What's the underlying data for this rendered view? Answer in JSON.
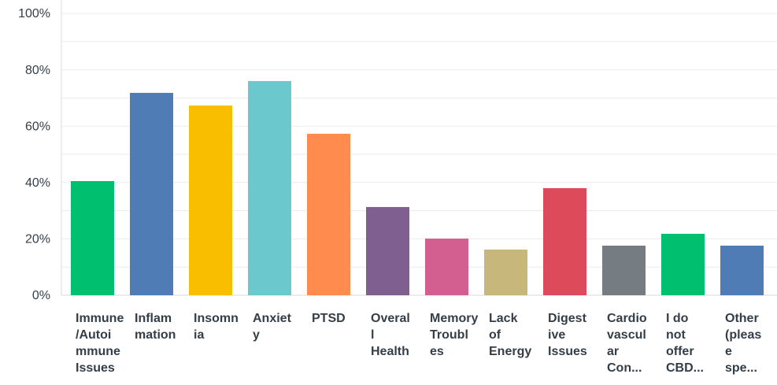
{
  "chart_data": {
    "type": "bar",
    "categories": [
      "Immune\n/Autoi\nmmune\nIssues",
      "Inflam\nmation",
      "Insomn\nia",
      "Anxiet\ny",
      "PTSD",
      "Overal\nl\nHealth",
      "Memory\nTroubl\nes",
      "Lack\nof\nEnergy",
      "Digest\nive\nIssues",
      "Cardio\nvascul\nar\nCon...",
      "I do\nnot\noffer\nCBD...",
      "Other\n(pleas\ne\nspe..."
    ],
    "values": [
      40.5,
      71.8,
      67.3,
      76.0,
      57.3,
      31.3,
      20.1,
      16.2,
      38.0,
      17.6,
      21.8,
      17.6
    ],
    "colors": [
      "#00bf6f",
      "#507cb6",
      "#f9be00",
      "#6bc8cd",
      "#ff8b4f",
      "#7f5f8f",
      "#d25f90",
      "#c8b77a",
      "#dd4a5a",
      "#757d83",
      "#00bf6f",
      "#507cb6"
    ],
    "ylim": [
      0,
      100
    ],
    "yticks": [
      {
        "value": 0,
        "label": "0%"
      },
      {
        "value": 20,
        "label": "20%"
      },
      {
        "value": 40,
        "label": "40%"
      },
      {
        "value": 60,
        "label": "60%"
      },
      {
        "value": 80,
        "label": "80%"
      },
      {
        "value": 100,
        "label": "100%"
      }
    ],
    "y_minor_ticks": [
      10,
      30,
      50,
      70,
      90
    ],
    "grid": true
  }
}
